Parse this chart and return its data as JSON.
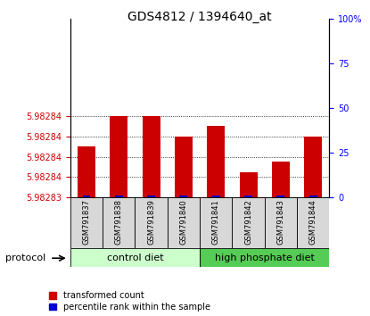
{
  "title": "GDS4812 / 1394640_at",
  "samples": [
    "GSM791837",
    "GSM791838",
    "GSM791839",
    "GSM791840",
    "GSM791841",
    "GSM791842",
    "GSM791843",
    "GSM791844"
  ],
  "transformed_count": [
    5.98284,
    5.982846,
    5.982846,
    5.982842,
    5.982844,
    5.982835,
    5.982837,
    5.982842
  ],
  "percentile_rank": [
    1,
    1,
    1,
    1,
    1,
    1,
    1,
    1
  ],
  "y_min": 5.98283,
  "y_max": 5.982865,
  "y_ticks_abs": [
    5.98283,
    5.982834,
    5.982838,
    5.982842,
    5.982846
  ],
  "y_tick_labels": [
    "5.98283",
    "5.98284",
    "5.98284",
    "5.98284",
    "5.98284"
  ],
  "right_y_ticks": [
    0,
    25,
    50,
    75,
    100
  ],
  "right_y_tick_labels": [
    "0",
    "25",
    "50",
    "75",
    "100%"
  ],
  "bar_color_red": "#cc0000",
  "bar_color_blue": "#0000cc",
  "control_diet_color_light": "#ccffcc",
  "high_phosphate_color_dark": "#55cc55",
  "protocol_label": "protocol",
  "control_diet_label": "control diet",
  "high_phosphate_label": "high phosphate diet",
  "legend_red_label": "transformed count",
  "legend_blue_label": "percentile rank within the sample",
  "title_fontsize": 10,
  "tick_fontsize": 7,
  "label_fontsize": 8,
  "bar_width": 0.55
}
